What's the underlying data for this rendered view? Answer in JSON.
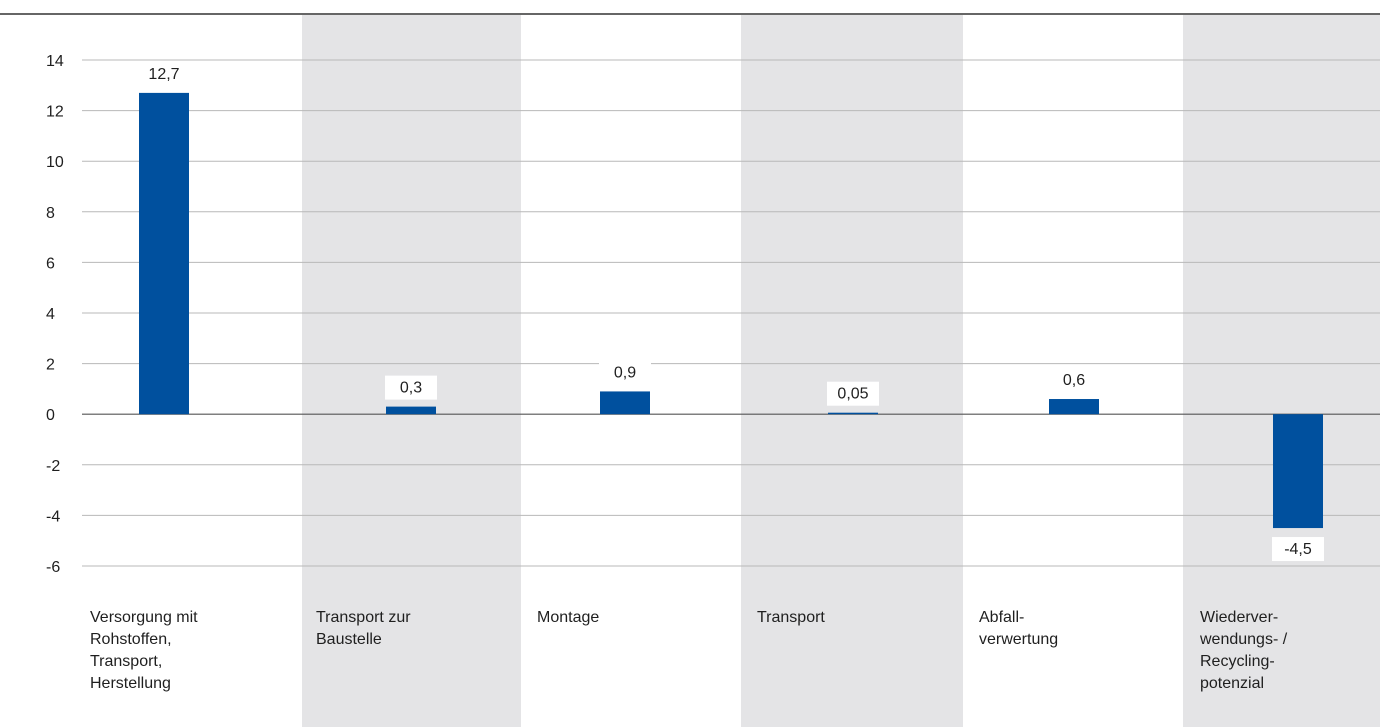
{
  "chart_data": {
    "type": "bar",
    "categories": [
      [
        "Versorgung mit",
        "Rohstoffen,",
        "Transport,",
        "Herstellung"
      ],
      [
        "Transport zur",
        "Baustelle"
      ],
      [
        "Montage"
      ],
      [
        "Transport"
      ],
      [
        "Abfall-",
        "verwertung"
      ],
      [
        "Wiederver-",
        "wendungs- /",
        "Recycling-",
        "potenzial"
      ]
    ],
    "values": [
      12.7,
      0.3,
      0.9,
      0.05,
      0.6,
      -4.5
    ],
    "value_labels": [
      "12,7",
      "0,3",
      "0,9",
      "0,05",
      "0,6",
      "-4,5"
    ],
    "yticks": [
      14,
      12,
      10,
      8,
      6,
      4,
      2,
      0,
      -2,
      -4,
      -6
    ],
    "ytick_labels": [
      "14",
      "12",
      "10",
      "8",
      "6",
      "4",
      "2",
      "0",
      "-2",
      "-4",
      "-6"
    ],
    "ylim": [
      -6,
      14
    ],
    "grid": true,
    "shaded_columns": [
      1,
      3,
      5
    ],
    "colors": {
      "bar": "#00509e",
      "band": "#e4e4e6",
      "grid": "#b8b8b8",
      "zero_line": "#555555",
      "top_rule": "#333333"
    }
  }
}
